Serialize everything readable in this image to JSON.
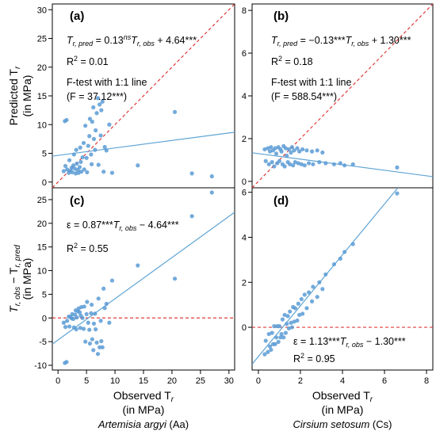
{
  "figure": {
    "x_axis_title": "Observed T",
    "x_axis_title_sub": "r",
    "x_axis_unit": "(in MPa)",
    "y_axis_title_top": "Predicted T",
    "y_axis_title_top_sub": "r",
    "y_axis_unit": "(in MPa)",
    "y_axis_title_bottom": "T",
    "y_axis_title_bottom_full": "r, obs",
    "y_axis_title_bottom_minus": " − T",
    "y_axis_title_bottom_sub2": "r, pred",
    "species_left_italic": "Artemisia argyi",
    "species_left_code": " (Aa)",
    "species_right_italic": "Cirsium setosum",
    "species_right_code": " (Cs)",
    "colors": {
      "points": "#5b9bd5",
      "fit_line": "#5fa4d4",
      "reference_line": "#e03c3c"
    }
  },
  "chart_data": [
    {
      "panel": "(a)",
      "type": "scatter",
      "xlim": [
        -1,
        31
      ],
      "ylim": [
        -1,
        31
      ],
      "x_ticks": [
        0,
        5,
        10,
        15,
        20,
        25,
        30
      ],
      "y_ticks": [
        0,
        5,
        10,
        15,
        20,
        25,
        30
      ],
      "reference_line": "1:1",
      "fit_line": {
        "intercept": 4.64,
        "slope": 0.13
      },
      "annotations": [
        "T_r,pred = 0.13^ns T_r,obs + 4.64***",
        "R² = 0.01",
        "F-test with 1:1 line",
        "(F = 37.12***)"
      ],
      "points": [
        [
          1.2,
          10.6
        ],
        [
          1.5,
          10.8
        ],
        [
          1.0,
          1.9
        ],
        [
          1.3,
          2.8
        ],
        [
          1.6,
          2.2
        ],
        [
          1.9,
          1.6
        ],
        [
          2.0,
          3.8
        ],
        [
          2.2,
          2.0
        ],
        [
          2.4,
          2.5
        ],
        [
          2.5,
          1.7
        ],
        [
          2.7,
          2.9
        ],
        [
          2.8,
          4.8
        ],
        [
          3.0,
          2.3
        ],
        [
          3.1,
          1.5
        ],
        [
          3.2,
          5.6
        ],
        [
          3.3,
          3.2
        ],
        [
          3.5,
          2.1
        ],
        [
          3.6,
          1.6
        ],
        [
          3.8,
          2.6
        ],
        [
          3.9,
          6.0
        ],
        [
          4.0,
          3.5
        ],
        [
          4.1,
          1.8
        ],
        [
          4.3,
          4.3
        ],
        [
          4.5,
          6.8
        ],
        [
          4.6,
          2.2
        ],
        [
          4.8,
          9.8
        ],
        [
          5.0,
          4.2
        ],
        [
          5.1,
          1.7
        ],
        [
          5.3,
          6.3
        ],
        [
          5.5,
          8.0
        ],
        [
          5.6,
          11.0
        ],
        [
          5.8,
          4.8
        ],
        [
          5.9,
          3.1
        ],
        [
          6.0,
          10.5
        ],
        [
          6.2,
          13.0
        ],
        [
          6.3,
          7.5
        ],
        [
          6.5,
          5.6
        ],
        [
          6.6,
          9.0
        ],
        [
          6.8,
          12.0
        ],
        [
          7.0,
          14.6
        ],
        [
          7.1,
          3.0
        ],
        [
          7.3,
          13.5
        ],
        [
          7.5,
          8.1
        ],
        [
          7.6,
          12.5
        ],
        [
          7.8,
          14.0
        ],
        [
          8.0,
          1.8
        ],
        [
          8.2,
          6.1
        ],
        [
          8.5,
          5.5
        ],
        [
          9.0,
          10.0
        ],
        [
          9.5,
          1.6
        ],
        [
          14.0,
          2.9
        ],
        [
          20.5,
          12.2
        ],
        [
          23.5,
          1.5
        ],
        [
          27.0,
          1.0
        ]
      ]
    },
    {
      "panel": "(b)",
      "type": "scatter",
      "xlim": [
        -0.3,
        8.3
      ],
      "ylim": [
        -0.3,
        8.3
      ],
      "x_ticks": [
        0,
        2,
        4,
        6,
        8
      ],
      "y_ticks": [
        0,
        2,
        4,
        6,
        8
      ],
      "reference_line": "1:1",
      "fit_line": {
        "intercept": 1.3,
        "slope": -0.13
      },
      "annotations": [
        "T_r,pred = −0.13*** T_r,obs + 1.30***",
        "R² = 0.18",
        "F-test with 1:1 line",
        "(F = 588.54***)"
      ],
      "points": [
        [
          0.3,
          1.5
        ],
        [
          0.45,
          1.55
        ],
        [
          0.55,
          1.4
        ],
        [
          0.6,
          1.6
        ],
        [
          0.7,
          1.45
        ],
        [
          0.8,
          1.55
        ],
        [
          0.85,
          1.3
        ],
        [
          0.95,
          1.6
        ],
        [
          1.05,
          1.5
        ],
        [
          1.1,
          1.4
        ],
        [
          1.2,
          1.65
        ],
        [
          1.3,
          1.55
        ],
        [
          1.35,
          1.2
        ],
        [
          1.45,
          1.5
        ],
        [
          1.55,
          1.35
        ],
        [
          1.6,
          1.6
        ],
        [
          1.7,
          1.45
        ],
        [
          1.85,
          1.55
        ],
        [
          1.95,
          1.4
        ],
        [
          2.1,
          1.5
        ],
        [
          2.3,
          1.45
        ],
        [
          2.55,
          1.4
        ],
        [
          2.8,
          1.45
        ],
        [
          3.05,
          1.35
        ],
        [
          0.35,
          0.95
        ],
        [
          0.5,
          0.8
        ],
        [
          0.65,
          0.9
        ],
        [
          0.75,
          0.7
        ],
        [
          0.9,
          0.85
        ],
        [
          1.0,
          0.95
        ],
        [
          1.15,
          0.8
        ],
        [
          1.25,
          0.7
        ],
        [
          1.4,
          0.9
        ],
        [
          1.5,
          0.8
        ],
        [
          1.65,
          0.75
        ],
        [
          1.75,
          0.9
        ],
        [
          1.9,
          0.85
        ],
        [
          2.05,
          0.8
        ],
        [
          2.2,
          0.75
        ],
        [
          2.4,
          0.85
        ],
        [
          2.6,
          0.8
        ],
        [
          2.9,
          0.9
        ],
        [
          3.2,
          0.85
        ],
        [
          3.6,
          0.8
        ],
        [
          3.9,
          0.85
        ],
        [
          4.1,
          0.75
        ],
        [
          4.5,
          0.8
        ],
        [
          6.6,
          0.65
        ]
      ]
    },
    {
      "panel": "(c)",
      "type": "scatter",
      "xlim": [
        -1,
        31
      ],
      "ylim": [
        -11,
        27.5
      ],
      "x_ticks": [
        0,
        5,
        10,
        15,
        20,
        25,
        30
      ],
      "y_ticks": [
        -10,
        -5,
        0,
        5,
        10,
        15,
        20,
        25
      ],
      "reference_line": "y = 0",
      "fit_line": {
        "intercept": -4.64,
        "slope": 0.87
      },
      "annotations": [
        "ε = 0.87*** T_r,obs − 4.64***",
        "R² = 0.55"
      ],
      "points": [
        [
          1.2,
          -9.5
        ],
        [
          1.5,
          -9.3
        ],
        [
          1.0,
          -1.0
        ],
        [
          1.3,
          -1.9
        ],
        [
          1.6,
          -0.6
        ],
        [
          1.9,
          0.3
        ],
        [
          2.0,
          -1.8
        ],
        [
          2.2,
          0.2
        ],
        [
          2.4,
          -0.1
        ],
        [
          2.5,
          0.8
        ],
        [
          2.7,
          -0.2
        ],
        [
          2.8,
          -2.0
        ],
        [
          3.0,
          0.7
        ],
        [
          3.1,
          1.6
        ],
        [
          3.2,
          -2.4
        ],
        [
          3.3,
          0.1
        ],
        [
          3.5,
          1.4
        ],
        [
          3.6,
          2.0
        ],
        [
          3.8,
          1.2
        ],
        [
          3.9,
          -2.1
        ],
        [
          4.0,
          0.5
        ],
        [
          4.1,
          2.3
        ],
        [
          4.3,
          0.0
        ],
        [
          4.5,
          -2.3
        ],
        [
          4.6,
          2.4
        ],
        [
          4.8,
          -5.0
        ],
        [
          5.0,
          0.8
        ],
        [
          5.1,
          3.4
        ],
        [
          5.3,
          -1.0
        ],
        [
          5.5,
          -2.5
        ],
        [
          5.6,
          -5.4
        ],
        [
          5.8,
          1.0
        ],
        [
          5.9,
          2.8
        ],
        [
          6.0,
          -4.5
        ],
        [
          6.2,
          -6.8
        ],
        [
          6.3,
          -1.2
        ],
        [
          6.5,
          0.9
        ],
        [
          6.6,
          -2.4
        ],
        [
          6.8,
          -5.2
        ],
        [
          7.0,
          -7.6
        ],
        [
          7.1,
          4.1
        ],
        [
          7.3,
          -6.2
        ],
        [
          7.5,
          -0.6
        ],
        [
          7.6,
          -4.9
        ],
        [
          7.8,
          -6.2
        ],
        [
          8.0,
          6.2
        ],
        [
          8.2,
          2.1
        ],
        [
          8.5,
          3.0
        ],
        [
          9.0,
          -1.0
        ],
        [
          9.5,
          7.9
        ],
        [
          14.0,
          11.1
        ],
        [
          20.5,
          8.3
        ],
        [
          23.5,
          21.5
        ],
        [
          27.0,
          26.5
        ]
      ]
    },
    {
      "panel": "(d)",
      "type": "scatter",
      "xlim": [
        -0.3,
        8.3
      ],
      "ylim": [
        -1.9,
        6.2
      ],
      "x_ticks": [
        0,
        2,
        4,
        6,
        8
      ],
      "y_ticks": [
        0,
        2,
        4,
        6
      ],
      "reference_line": "y = 0",
      "fit_line": {
        "intercept": -1.3,
        "slope": 1.13
      },
      "annotations": [
        "ε = 1.13*** T_r,obs − 1.30***",
        "R² = 0.95"
      ],
      "points": [
        [
          0.3,
          -1.2
        ],
        [
          0.45,
          -1.1
        ],
        [
          0.55,
          -0.85
        ],
        [
          0.6,
          -1.0
        ],
        [
          0.7,
          -0.75
        ],
        [
          0.8,
          -0.75
        ],
        [
          0.85,
          -0.45
        ],
        [
          0.95,
          -0.65
        ],
        [
          1.05,
          -0.45
        ],
        [
          1.1,
          -0.3
        ],
        [
          1.2,
          -0.45
        ],
        [
          1.3,
          -0.25
        ],
        [
          1.35,
          0.15
        ],
        [
          1.45,
          -0.05
        ],
        [
          1.55,
          0.2
        ],
        [
          1.6,
          0.0
        ],
        [
          1.7,
          0.25
        ],
        [
          1.85,
          0.3
        ],
        [
          1.95,
          0.55
        ],
        [
          2.1,
          0.6
        ],
        [
          2.3,
          0.85
        ],
        [
          2.55,
          1.15
        ],
        [
          2.8,
          1.35
        ],
        [
          3.05,
          1.7
        ],
        [
          0.35,
          -0.6
        ],
        [
          0.5,
          -0.3
        ],
        [
          0.65,
          -0.25
        ],
        [
          0.75,
          0.05
        ],
        [
          0.9,
          0.05
        ],
        [
          1.0,
          0.05
        ],
        [
          1.15,
          0.35
        ],
        [
          1.25,
          0.55
        ],
        [
          1.4,
          0.5
        ],
        [
          1.5,
          0.7
        ],
        [
          1.65,
          0.9
        ],
        [
          1.75,
          0.85
        ],
        [
          1.9,
          1.05
        ],
        [
          2.05,
          1.25
        ],
        [
          2.2,
          1.45
        ],
        [
          2.4,
          1.55
        ],
        [
          2.6,
          1.8
        ],
        [
          2.9,
          2.0
        ],
        [
          3.2,
          2.35
        ],
        [
          3.6,
          2.8
        ],
        [
          3.9,
          3.05
        ],
        [
          4.1,
          3.35
        ],
        [
          4.5,
          3.7
        ],
        [
          6.6,
          5.95
        ]
      ]
    }
  ]
}
